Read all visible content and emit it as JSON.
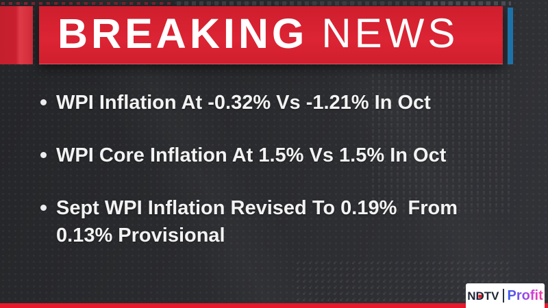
{
  "header": {
    "breaking": "BREAKING",
    "news": "NEWS"
  },
  "colors": {
    "banner_red": "#d7202f",
    "accent_blue": "#1d73a9",
    "bottom_strip_red": "#e6182c",
    "text_white": "#f3f3f3",
    "background_dark": "#2a2b2e",
    "profit_gradient_start": "#3a5cf0",
    "profit_gradient_end": "#f03f9e",
    "ndtv_navy": "#1e2536"
  },
  "bullets": [
    {
      "lines": [
        "WPI Inflation At -0.32% Vs -1.21% In Oct"
      ]
    },
    {
      "lines": [
        "WPI Core Inflation At 1.5% Vs 1.5% In Oct"
      ]
    },
    {
      "lines": [
        "Sept WPI Inflation Revised To 0.19%  From",
        "0.13% Provisional"
      ]
    }
  ],
  "footer": {
    "brand_n": "N",
    "brand_d": "D",
    "brand_tv": "TV",
    "product": "Profit"
  }
}
